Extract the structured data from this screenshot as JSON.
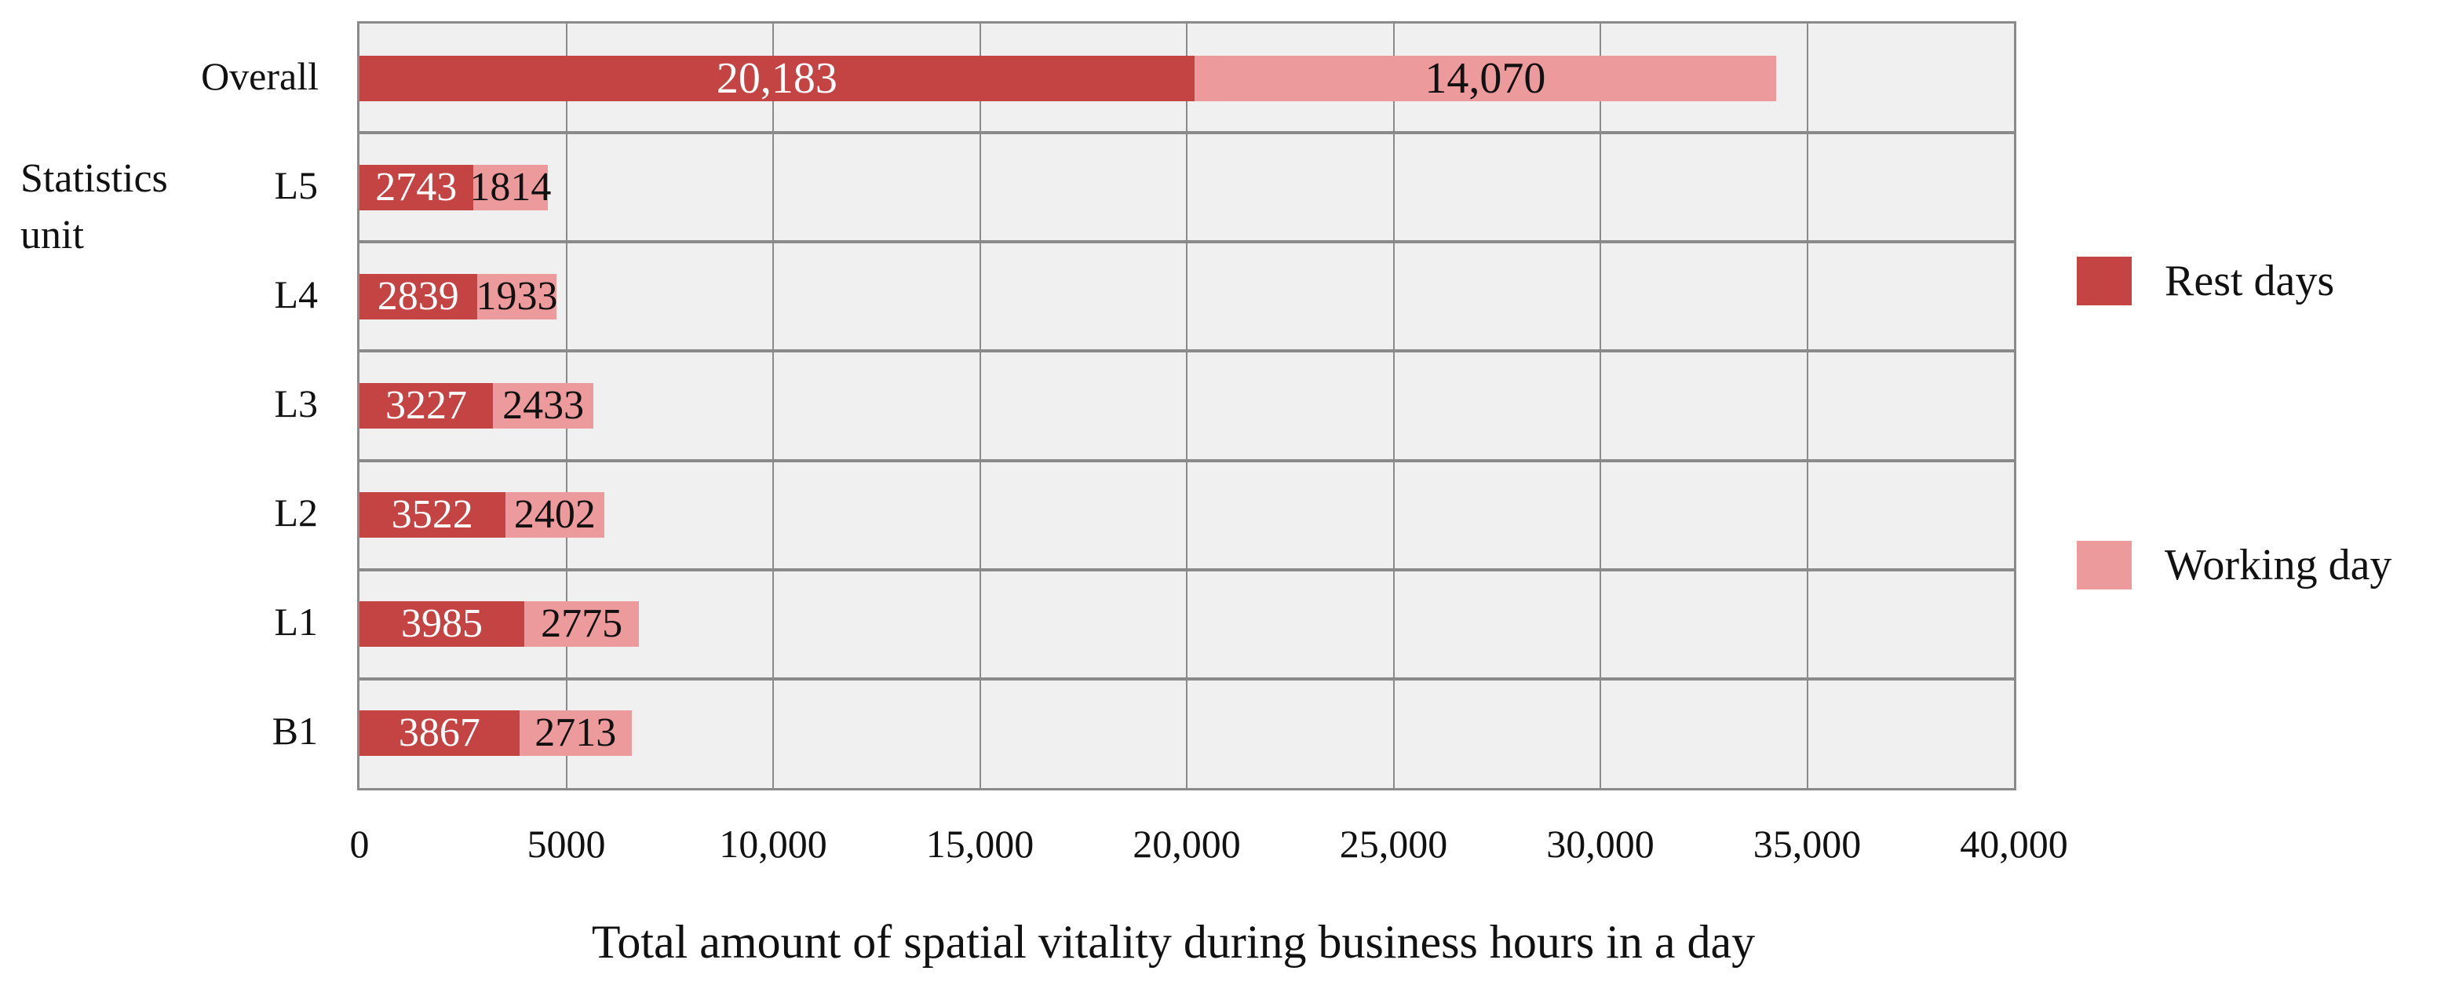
{
  "chart_data": {
    "type": "bar",
    "orientation": "horizontal",
    "stacked": true,
    "title": "",
    "xlabel": "Total amount of spatial vitality during business hours in a day",
    "ylabel": "Statistics unit",
    "xlim": [
      0,
      40000
    ],
    "xticks": [
      "0",
      "5000",
      "10,000",
      "15,000",
      "20,000",
      "25,000",
      "30,000",
      "35,000",
      "40,000"
    ],
    "grid": true,
    "legend_position": "right",
    "categories": [
      "Overall",
      "L5",
      "L4",
      "L3",
      "L2",
      "L1",
      "B1"
    ],
    "series": [
      {
        "name": "Rest days",
        "color": "#c44444",
        "values": [
          20183,
          2743,
          2839,
          3227,
          3522,
          3985,
          3867
        ],
        "labels": [
          "20,183",
          "2743",
          "2839",
          "3227",
          "3522",
          "3985",
          "3867"
        ]
      },
      {
        "name": "Working day",
        "color": "#ec9a9c",
        "values": [
          14070,
          1814,
          1933,
          2433,
          2402,
          2775,
          2713
        ],
        "labels": [
          "14,070",
          "1814",
          "1933",
          "2433",
          "2402",
          "2775",
          "2713"
        ]
      }
    ]
  },
  "ytitle": {
    "line1": "Statistics",
    "line2": "unit"
  },
  "legend": [
    {
      "label": "Rest days",
      "color": "#c44444"
    },
    {
      "label": "Working day",
      "color": "#ec9a9c"
    }
  ]
}
